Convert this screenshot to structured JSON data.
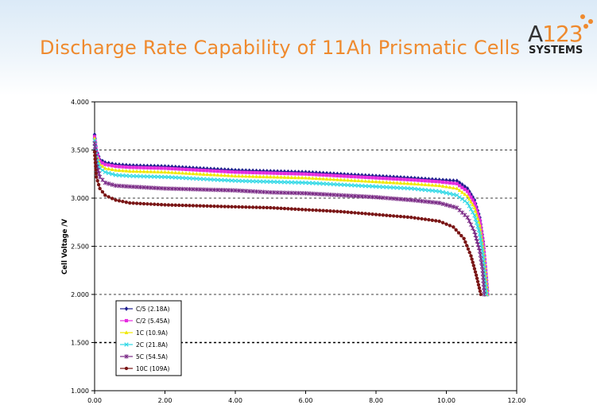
{
  "slide": {
    "title": "Discharge Rate Capability of 11Ah Prismatic Cells",
    "logo": {
      "brand_letter": "A",
      "brand_number": "123",
      "subtitle": "SYSTEMS",
      "accent_color": "#ef8a2e"
    }
  },
  "chart_data": {
    "type": "line",
    "title": "",
    "xlabel": "",
    "ylabel": "Cell Voltage /V",
    "xlim": [
      0,
      12
    ],
    "ylim": [
      1.0,
      4.0
    ],
    "x_ticks": [
      "0.00",
      "2.00",
      "4.00",
      "6.00",
      "8.00",
      "10.00",
      "12.00"
    ],
    "y_ticks": [
      "1.000",
      "1.500",
      "2.000",
      "2.500",
      "3.000",
      "3.500",
      "4.000"
    ],
    "grid": "horizontal-dashed",
    "legend_position": "bottom-left",
    "series": [
      {
        "name": "C/5 (2.18A)",
        "color": "#1f1f8f",
        "marker": "diamond",
        "points": [
          [
            0,
            3.66
          ],
          [
            0.05,
            3.5
          ],
          [
            0.15,
            3.4
          ],
          [
            0.3,
            3.37
          ],
          [
            0.6,
            3.35
          ],
          [
            1,
            3.34
          ],
          [
            2,
            3.33
          ],
          [
            3,
            3.31
          ],
          [
            4,
            3.29
          ],
          [
            5,
            3.28
          ],
          [
            6,
            3.27
          ],
          [
            7,
            3.25
          ],
          [
            8,
            3.23
          ],
          [
            9,
            3.21
          ],
          [
            9.8,
            3.19
          ],
          [
            10.3,
            3.18
          ],
          [
            10.6,
            3.1
          ],
          [
            10.8,
            2.98
          ],
          [
            10.95,
            2.8
          ],
          [
            11.05,
            2.55
          ],
          [
            11.12,
            2.25
          ],
          [
            11.18,
            2.0
          ]
        ]
      },
      {
        "name": "C/2 (5.45A)",
        "color": "#e62ce0",
        "marker": "square",
        "points": [
          [
            0,
            3.64
          ],
          [
            0.05,
            3.48
          ],
          [
            0.15,
            3.38
          ],
          [
            0.3,
            3.35
          ],
          [
            0.6,
            3.33
          ],
          [
            1,
            3.32
          ],
          [
            2,
            3.31
          ],
          [
            3,
            3.29
          ],
          [
            4,
            3.27
          ],
          [
            5,
            3.26
          ],
          [
            6,
            3.25
          ],
          [
            7,
            3.23
          ],
          [
            8,
            3.21
          ],
          [
            9,
            3.19
          ],
          [
            9.8,
            3.17
          ],
          [
            10.3,
            3.15
          ],
          [
            10.6,
            3.07
          ],
          [
            10.8,
            2.95
          ],
          [
            10.95,
            2.77
          ],
          [
            11.05,
            2.52
          ],
          [
            11.12,
            2.25
          ],
          [
            11.17,
            2.0
          ]
        ]
      },
      {
        "name": "1C (10.9A)",
        "color": "#f0e800",
        "marker": "triangle",
        "points": [
          [
            0,
            3.62
          ],
          [
            0.05,
            3.45
          ],
          [
            0.15,
            3.35
          ],
          [
            0.3,
            3.31
          ],
          [
            0.6,
            3.29
          ],
          [
            1,
            3.28
          ],
          [
            2,
            3.27
          ],
          [
            3,
            3.25
          ],
          [
            4,
            3.23
          ],
          [
            5,
            3.22
          ],
          [
            6,
            3.21
          ],
          [
            7,
            3.19
          ],
          [
            8,
            3.17
          ],
          [
            9,
            3.15
          ],
          [
            9.8,
            3.13
          ],
          [
            10.3,
            3.1
          ],
          [
            10.6,
            3.02
          ],
          [
            10.8,
            2.9
          ],
          [
            10.95,
            2.72
          ],
          [
            11.05,
            2.47
          ],
          [
            11.12,
            2.2
          ],
          [
            11.16,
            2.0
          ]
        ]
      },
      {
        "name": "2C (21.8A)",
        "color": "#2fd8e6",
        "marker": "x",
        "points": [
          [
            0,
            3.6
          ],
          [
            0.05,
            3.42
          ],
          [
            0.15,
            3.31
          ],
          [
            0.3,
            3.27
          ],
          [
            0.6,
            3.24
          ],
          [
            1,
            3.23
          ],
          [
            2,
            3.22
          ],
          [
            3,
            3.2
          ],
          [
            4,
            3.18
          ],
          [
            5,
            3.17
          ],
          [
            6,
            3.16
          ],
          [
            7,
            3.14
          ],
          [
            8,
            3.12
          ],
          [
            9,
            3.1
          ],
          [
            9.8,
            3.07
          ],
          [
            10.3,
            3.03
          ],
          [
            10.6,
            2.95
          ],
          [
            10.8,
            2.82
          ],
          [
            10.95,
            2.63
          ],
          [
            11.05,
            2.38
          ],
          [
            11.1,
            2.15
          ],
          [
            11.14,
            2.0
          ]
        ]
      },
      {
        "name": "5C (54.5A)",
        "color": "#7a2a86",
        "marker": "star",
        "points": [
          [
            0,
            3.57
          ],
          [
            0.05,
            3.36
          ],
          [
            0.15,
            3.22
          ],
          [
            0.3,
            3.16
          ],
          [
            0.6,
            3.13
          ],
          [
            1,
            3.12
          ],
          [
            2,
            3.1
          ],
          [
            3,
            3.09
          ],
          [
            4,
            3.08
          ],
          [
            5,
            3.06
          ],
          [
            6,
            3.05
          ],
          [
            7,
            3.03
          ],
          [
            8,
            3.01
          ],
          [
            9,
            2.98
          ],
          [
            9.8,
            2.95
          ],
          [
            10.3,
            2.9
          ],
          [
            10.6,
            2.8
          ],
          [
            10.8,
            2.65
          ],
          [
            10.95,
            2.45
          ],
          [
            11.03,
            2.25
          ],
          [
            11.08,
            2.0
          ]
        ]
      },
      {
        "name": "10C (109A)",
        "color": "#7a1616",
        "marker": "circle",
        "points": [
          [
            0,
            3.48
          ],
          [
            0.05,
            3.22
          ],
          [
            0.15,
            3.1
          ],
          [
            0.3,
            3.03
          ],
          [
            0.6,
            2.98
          ],
          [
            1,
            2.95
          ],
          [
            2,
            2.93
          ],
          [
            3,
            2.92
          ],
          [
            4,
            2.91
          ],
          [
            5,
            2.9
          ],
          [
            6,
            2.88
          ],
          [
            7,
            2.86
          ],
          [
            8,
            2.83
          ],
          [
            9,
            2.8
          ],
          [
            9.8,
            2.76
          ],
          [
            10.2,
            2.7
          ],
          [
            10.5,
            2.58
          ],
          [
            10.7,
            2.4
          ],
          [
            10.85,
            2.2
          ],
          [
            10.98,
            2.0
          ]
        ]
      }
    ]
  }
}
